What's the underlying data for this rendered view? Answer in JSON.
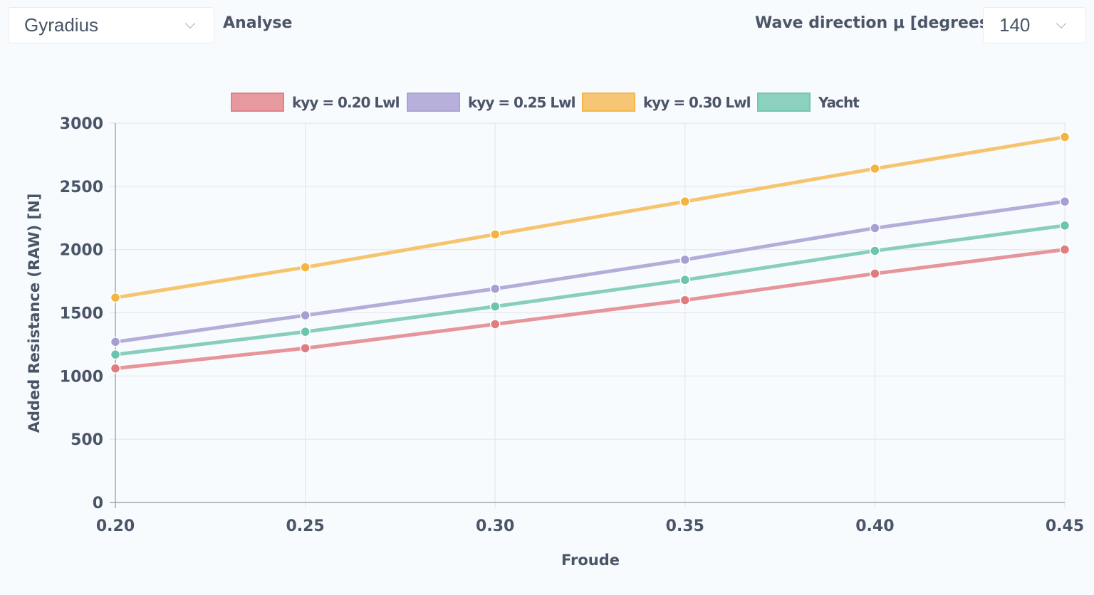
{
  "controls": {
    "type_select": {
      "value": "Gyradius",
      "icon": "chevron-down-icon"
    },
    "analyse_label": "Analyse",
    "wave_direction_label": "Wave direction μ [degrees]",
    "wave_direction_select": {
      "value": "140",
      "icon": "chevron-down-icon"
    }
  },
  "colors": {
    "red": "#e6959a",
    "purple": "#b4add9",
    "orange": "#f7c46e",
    "green": "#87cfbc",
    "grid": "#e3e8ee",
    "axis": "#a0a8b4",
    "text": "#4a5568"
  },
  "chart_data": {
    "type": "line",
    "title": "",
    "xlabel": "Froude",
    "ylabel": "Added Resistance (RAW) [N]",
    "x": [
      0.2,
      0.25,
      0.3,
      0.35,
      0.4,
      0.45
    ],
    "x_tick_labels": [
      "0.20",
      "0.25",
      "0.30",
      "0.35",
      "0.40",
      "0.45"
    ],
    "y_ticks": [
      0,
      500,
      1000,
      1500,
      2000,
      2500,
      3000
    ],
    "xlim": [
      0.2,
      0.45
    ],
    "ylim": [
      0,
      3000
    ],
    "grid": true,
    "legend_position": "top",
    "series": [
      {
        "name": "kyy = 0.20 Lwl",
        "color": "#e6959a",
        "point_color": "#e07b80",
        "values": [
          1060,
          1220,
          1410,
          1600,
          1810,
          2000
        ]
      },
      {
        "name": "kyy = 0.25 Lwl",
        "color": "#b4add9",
        "point_color": "#a69fd4",
        "values": [
          1270,
          1480,
          1690,
          1920,
          2170,
          2380
        ]
      },
      {
        "name": "kyy = 0.30 Lwl",
        "color": "#f7c46e",
        "point_color": "#f5b43f",
        "values": [
          1620,
          1860,
          2120,
          2380,
          2640,
          2890
        ]
      },
      {
        "name": "Yacht",
        "color": "#87cfbc",
        "point_color": "#6cc4ae",
        "values": [
          1170,
          1350,
          1550,
          1760,
          1990,
          2190
        ]
      }
    ]
  }
}
